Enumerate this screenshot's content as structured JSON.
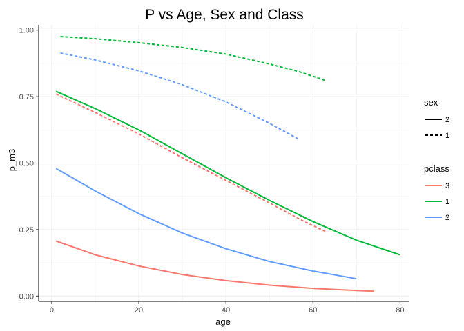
{
  "chart_data": {
    "type": "line",
    "title": "P vs Age, Sex and Class",
    "xlabel": "age",
    "ylabel": "p_m3",
    "xlim": [
      -3,
      82
    ],
    "ylim": [
      -0.02,
      1.02
    ],
    "x_ticks": [
      0,
      20,
      40,
      60,
      80
    ],
    "y_ticks": [
      0.0,
      0.25,
      0.5,
      0.75,
      1.0
    ],
    "x_tick_labels": [
      "0",
      "20",
      "40",
      "60",
      "80"
    ],
    "y_tick_labels": [
      "0.00",
      "0.25",
      "0.50",
      "0.75",
      "1.00"
    ],
    "grid": true,
    "legend_position": "right",
    "legends": [
      {
        "title": "sex",
        "entries": [
          {
            "label": "2",
            "linetype": "solid"
          },
          {
            "label": "1",
            "linetype": "dashed"
          }
        ]
      },
      {
        "title": "pclass",
        "entries": [
          {
            "label": "3",
            "color": "#F8766D"
          },
          {
            "label": "1",
            "color": "#00BA38"
          },
          {
            "label": "2",
            "color": "#619CFF"
          }
        ]
      }
    ],
    "series": [
      {
        "sex": "1",
        "pclass": "1",
        "color": "#00BA38",
        "linetype": "dashed",
        "points": [
          [
            2,
            0.976
          ],
          [
            10,
            0.968
          ],
          [
            20,
            0.953
          ],
          [
            30,
            0.935
          ],
          [
            40,
            0.91
          ],
          [
            50,
            0.873
          ],
          [
            57,
            0.843
          ],
          [
            63,
            0.81
          ]
        ]
      },
      {
        "sex": "1",
        "pclass": "2",
        "color": "#619CFF",
        "linetype": "dashed",
        "points": [
          [
            2,
            0.914
          ],
          [
            10,
            0.888
          ],
          [
            20,
            0.847
          ],
          [
            30,
            0.795
          ],
          [
            40,
            0.73
          ],
          [
            50,
            0.65
          ],
          [
            56.5,
            0.592
          ]
        ]
      },
      {
        "sex": "2",
        "pclass": "1",
        "color": "#00BA38",
        "linetype": "solid",
        "points": [
          [
            1,
            0.77
          ],
          [
            10,
            0.705
          ],
          [
            20,
            0.625
          ],
          [
            30,
            0.535
          ],
          [
            40,
            0.445
          ],
          [
            50,
            0.36
          ],
          [
            60,
            0.28
          ],
          [
            70,
            0.21
          ],
          [
            80,
            0.155
          ]
        ]
      },
      {
        "sex": "1",
        "pclass": "3",
        "color": "#F8766D",
        "linetype": "dashed",
        "points": [
          [
            1,
            0.76
          ],
          [
            10,
            0.69
          ],
          [
            20,
            0.61
          ],
          [
            30,
            0.52
          ],
          [
            40,
            0.435
          ],
          [
            50,
            0.35
          ],
          [
            58,
            0.28
          ],
          [
            63,
            0.242
          ]
        ]
      },
      {
        "sex": "2",
        "pclass": "2",
        "color": "#619CFF",
        "linetype": "solid",
        "points": [
          [
            1,
            0.48
          ],
          [
            10,
            0.395
          ],
          [
            20,
            0.31
          ],
          [
            30,
            0.237
          ],
          [
            40,
            0.178
          ],
          [
            50,
            0.13
          ],
          [
            60,
            0.094
          ],
          [
            70,
            0.065
          ]
        ]
      },
      {
        "sex": "2",
        "pclass": "3",
        "color": "#F8766D",
        "linetype": "solid",
        "points": [
          [
            1,
            0.207
          ],
          [
            10,
            0.155
          ],
          [
            20,
            0.113
          ],
          [
            30,
            0.081
          ],
          [
            40,
            0.058
          ],
          [
            50,
            0.041
          ],
          [
            60,
            0.029
          ],
          [
            70,
            0.021
          ],
          [
            74,
            0.018
          ]
        ]
      }
    ]
  }
}
